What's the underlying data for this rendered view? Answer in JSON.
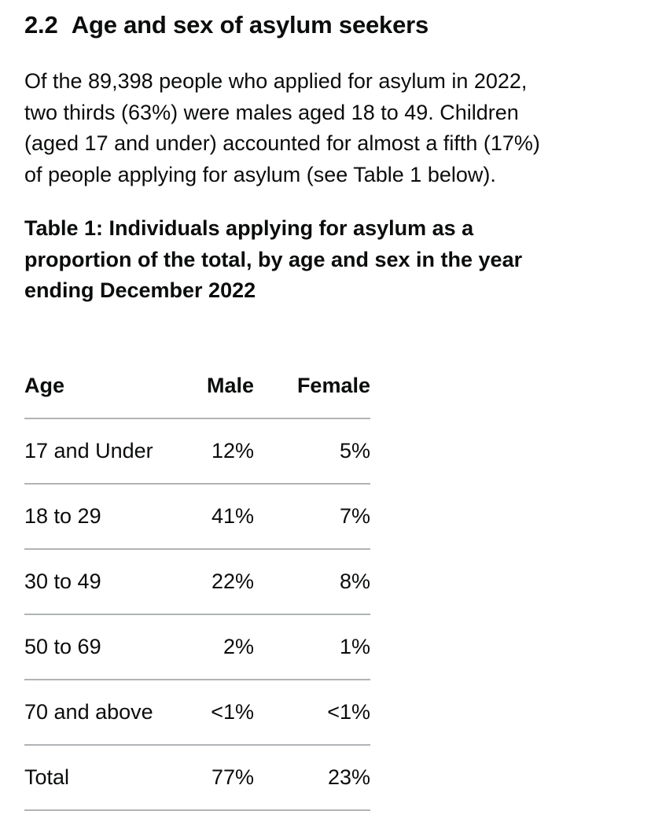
{
  "section": {
    "number": "2.2",
    "title": "Age and sex of asylum seekers"
  },
  "intro_lines": [
    "Of the 89,398 people who applied for asylum in 2022,",
    "two thirds (63%) were males aged 18 to 49. Children",
    "(aged 17 and under) accounted for almost a fifth (17%)",
    "of people applying for asylum (see Table 1 below)."
  ],
  "table": {
    "caption_lines": [
      "Table 1: Individuals applying for asylum as a",
      "proportion of the total, by age and sex in the year",
      "ending December 2022"
    ],
    "headers": {
      "age": "Age",
      "male": "Male",
      "female": "Female"
    },
    "rows": [
      {
        "age": "17 and Under",
        "male": "12%",
        "female": "5%"
      },
      {
        "age": "18 to 29",
        "male": "41%",
        "female": "7%"
      },
      {
        "age": "30 to 49",
        "male": "22%",
        "female": "8%"
      },
      {
        "age": "50 to 69",
        "male": "2%",
        "female": "1%"
      },
      {
        "age": "70 and above",
        "male": "<1%",
        "female": "<1%"
      },
      {
        "age": "Total",
        "male": "77%",
        "female": "23%"
      }
    ]
  }
}
